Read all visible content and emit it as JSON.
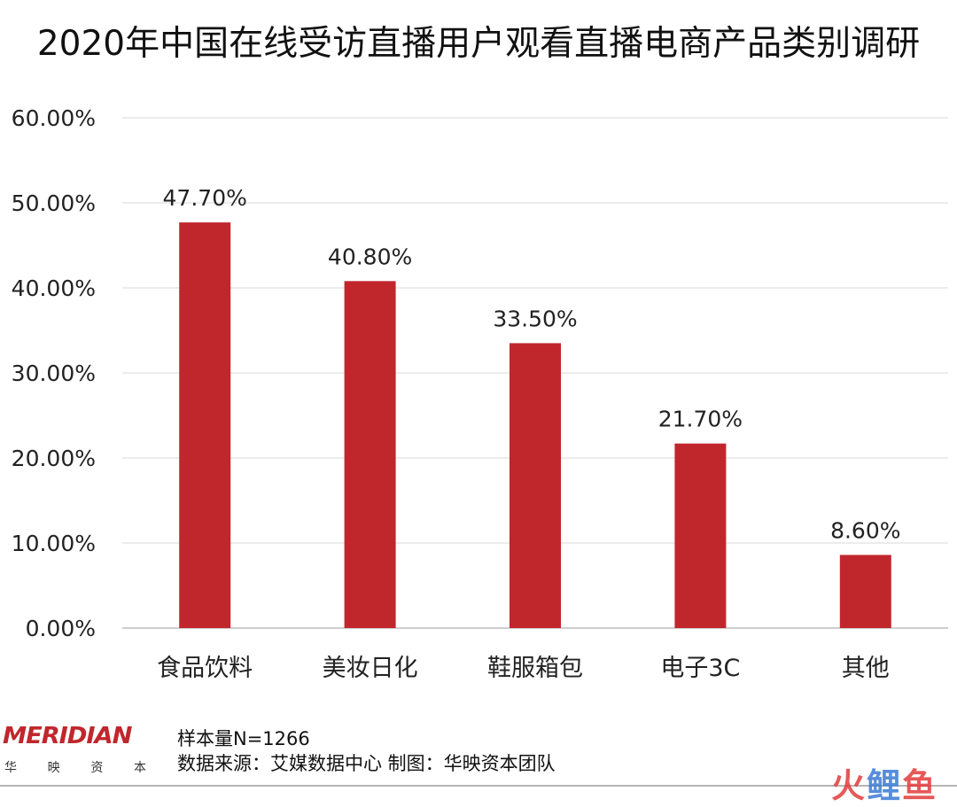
{
  "chart_data": {
    "type": "bar",
    "title": "2020年中国在线受访直播用户观看直播电商产品类别调研",
    "xlabel": "",
    "ylabel": "",
    "categories": [
      "食品饮料",
      "美妆日化",
      "鞋服箱包",
      "电子3C",
      "其他"
    ],
    "values": [
      47.7,
      40.8,
      33.5,
      21.7,
      8.6
    ],
    "data_labels": [
      "47.70%",
      "40.80%",
      "33.50%",
      "21.70%",
      "8.60%"
    ],
    "ylim": [
      0,
      60
    ],
    "yticks": [
      0,
      10,
      20,
      30,
      40,
      50,
      60
    ],
    "ytick_labels": [
      "0.00%",
      "10.00%",
      "20.00%",
      "30.00%",
      "40.00%",
      "50.00%",
      "60.00%"
    ],
    "grid": true,
    "legend": "none",
    "bar_color": "#C0272D"
  },
  "footer": {
    "logo_text": "MERIDIAN",
    "logo_sub": [
      "华",
      "映",
      "资",
      "本"
    ],
    "sample_size": "样本量N=1266",
    "source": "数据来源：艾媒数据中心 制图：华映资本团队",
    "watermark_part1": "火",
    "watermark_part2": "鲤",
    "watermark_part3": "鱼"
  }
}
